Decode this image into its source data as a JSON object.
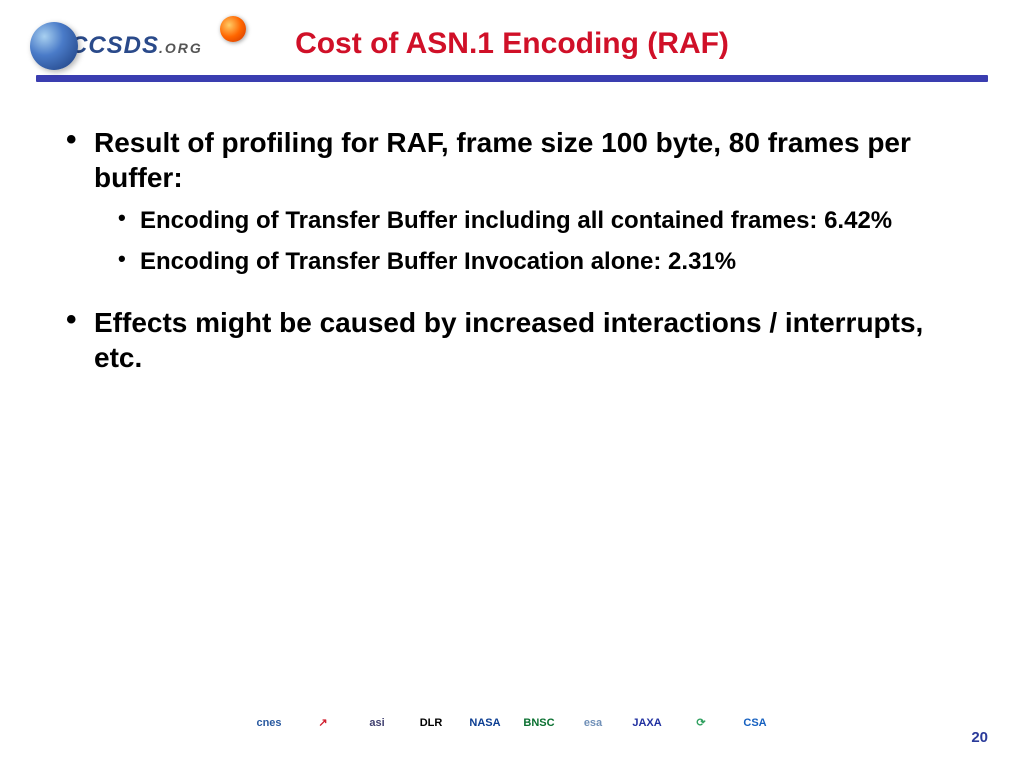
{
  "header": {
    "logo_text_main": "CCSDS",
    "logo_text_suffix": ".ORG",
    "title": "Cost of ASN.1 Encoding (RAF)",
    "title_color": "#d01028",
    "title_fontsize": 30,
    "rule_color": "#3a3db0"
  },
  "bullets": {
    "level1_fontsize": 28,
    "level2_fontsize": 24,
    "text_color": "#000000",
    "items": [
      {
        "text": "Result of profiling for RAF, frame size 100 byte, 80 frames per buffer:",
        "sub": [
          "Encoding of Transfer Buffer including all contained frames: 6.42%",
          "Encoding of Transfer Buffer Invocation alone: 2.31%"
        ]
      },
      {
        "text": "Effects might be caused by increased interactions / interrupts, etc.",
        "sub": []
      }
    ]
  },
  "footer": {
    "page_number": "20",
    "page_number_color": "#2a3a9a",
    "page_number_fontsize": 15,
    "agencies": [
      {
        "label": "cnes",
        "color": "#2a5aa0"
      },
      {
        "label": "↗",
        "color": "#d02030"
      },
      {
        "label": "asi",
        "color": "#404070"
      },
      {
        "label": "DLR",
        "color": "#000000"
      },
      {
        "label": "NASA",
        "color": "#0b3d91"
      },
      {
        "label": "BNSC",
        "color": "#0a7030"
      },
      {
        "label": "esa",
        "color": "#7090b8"
      },
      {
        "label": "JAXA",
        "color": "#2030a0"
      },
      {
        "label": "⟳",
        "color": "#30a060"
      },
      {
        "label": "CSA",
        "color": "#1560c0"
      }
    ]
  }
}
